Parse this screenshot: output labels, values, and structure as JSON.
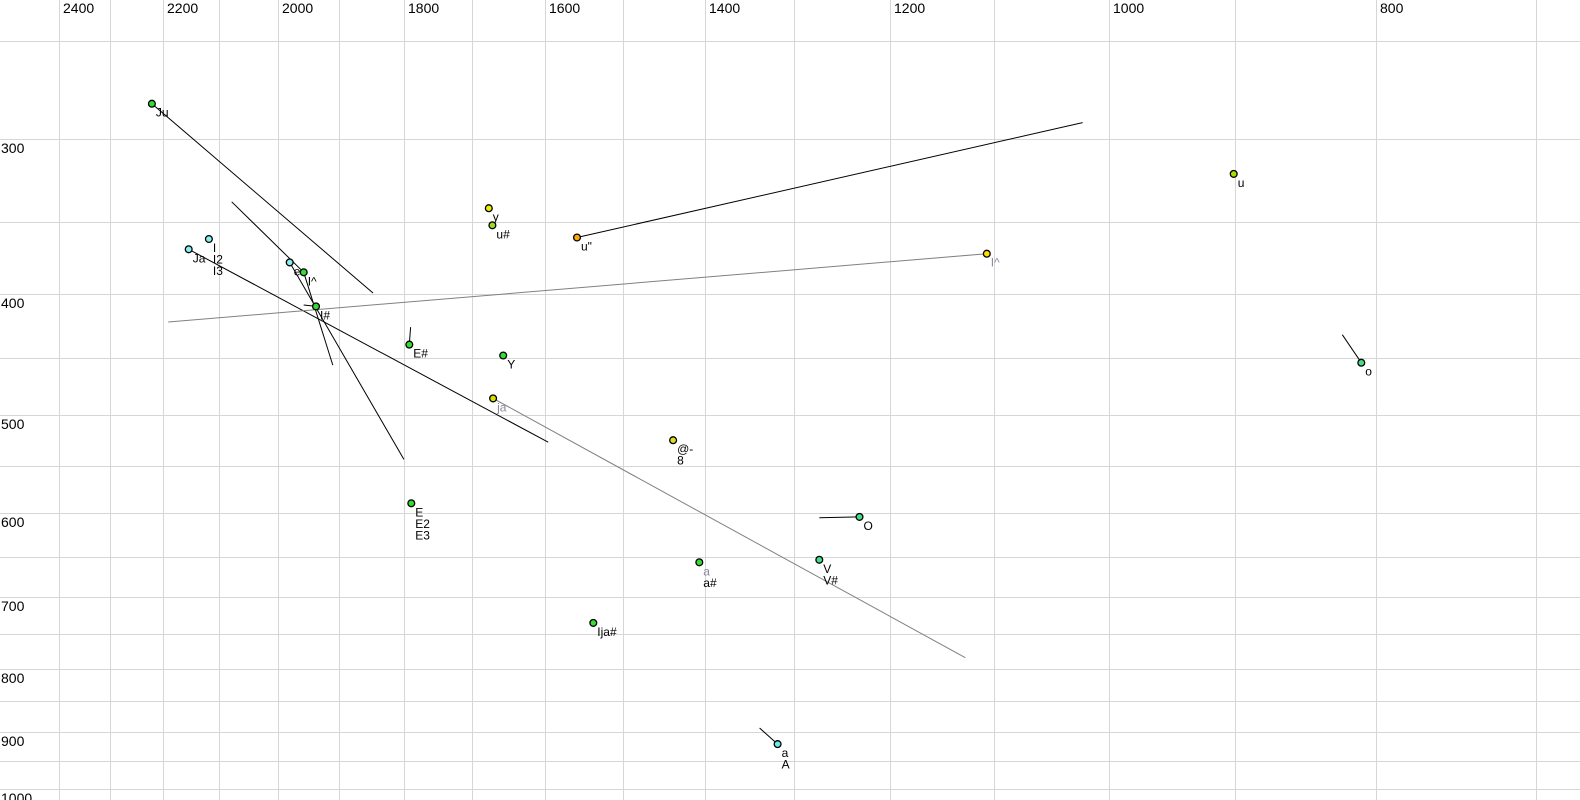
{
  "chart_data": {
    "type": "scatter",
    "title": "",
    "xlabel": "",
    "ylabel": "",
    "description": "Vowel formant plot (F2 horizontal reversed log scale, F1 vertical log scale), Praat-style picture with labelled vowel tokens and trajectory lines",
    "x_axis": {
      "unit": "Hz",
      "scale": "log",
      "reversed": true,
      "grid_min": 700,
      "grid_max": 2400,
      "gridline_step": 100,
      "labeled_ticks": [
        2400,
        2200,
        2000,
        1800,
        1600,
        1400,
        1200,
        1000,
        800
      ]
    },
    "y_axis": {
      "unit": "Hz",
      "scale": "log",
      "downward": true,
      "grid_min": 250,
      "grid_max": 1000,
      "gridline_step": 50,
      "labeled_ticks": [
        300,
        400,
        500,
        600,
        700,
        800,
        900,
        1000
      ]
    },
    "grid": true,
    "legend": false,
    "points": [
      {
        "id": "Ju",
        "f2": 2221,
        "f1": 281,
        "color": "#33dd33",
        "labels": [
          {
            "text": "Ju",
            "color": "#000000"
          }
        ]
      },
      {
        "id": "I",
        "f2": 2118,
        "f1": 361,
        "color": "#88eeee",
        "labels": [
          {
            "text": "I",
            "color": "#000000"
          },
          {
            "text": "I2",
            "color": "#000000"
          },
          {
            "text": "I3",
            "color": "#000000"
          }
        ]
      },
      {
        "id": "Ja",
        "f2": 2154,
        "f1": 368,
        "color": "#88eeee",
        "labels": [
          {
            "text": "Ja",
            "color": "#000000"
          }
        ]
      },
      {
        "id": "e",
        "f2": 1980,
        "f1": 377,
        "color": "#88eeee",
        "labels": [
          {
            "text": "e",
            "color": "#000000"
          }
        ]
      },
      {
        "id": "I^",
        "f2": 1957,
        "f1": 384,
        "color": "#33dd33",
        "labels": [
          {
            "text": "I^",
            "color": "#000000"
          }
        ]
      },
      {
        "id": "I#",
        "f2": 1937,
        "f1": 409,
        "color": "#33dd33",
        "labels": [
          {
            "text": "I#",
            "color": "#000000"
          }
        ]
      },
      {
        "id": "y",
        "f2": 1677,
        "f1": 341,
        "color": "#eeee00",
        "labels": [
          {
            "text": "y",
            "color": "#000000"
          }
        ]
      },
      {
        "id": "u#",
        "f2": 1672,
        "f1": 352,
        "color": "#99dd22",
        "labels": [
          {
            "text": "u#",
            "color": "#000000"
          }
        ]
      },
      {
        "id": "u\"",
        "f2": 1558,
        "f1": 360,
        "color": "#ffaa00",
        "labels": [
          {
            "text": "u\"",
            "color": "#000000"
          }
        ]
      },
      {
        "id": "E#",
        "f2": 1792,
        "f1": 439,
        "color": "#33dd33",
        "labels": [
          {
            "text": "E#",
            "color": "#000000"
          }
        ]
      },
      {
        "id": "Y",
        "f2": 1657,
        "f1": 448,
        "color": "#33dd33",
        "labels": [
          {
            "text": "Y",
            "color": "#000000"
          }
        ]
      },
      {
        "id": "ja",
        "f2": 1671,
        "f1": 485,
        "color": "#dddd00",
        "labels": [
          {
            "text": "ja",
            "color": "#8a8a9e"
          }
        ]
      },
      {
        "id": "@-",
        "f2": 1438,
        "f1": 524,
        "color": "#dddd22",
        "labels": [
          {
            "text": "@-",
            "color": "#000000"
          },
          {
            "text": "8",
            "color": "#000000"
          }
        ]
      },
      {
        "id": "E",
        "f2": 1789,
        "f1": 589,
        "color": "#33dd33",
        "labels": [
          {
            "text": "E",
            "color": "#000000"
          },
          {
            "text": "E2",
            "color": "#000000"
          },
          {
            "text": "E3",
            "color": "#000000"
          }
        ]
      },
      {
        "id": "O",
        "f2": 1231,
        "f1": 604,
        "color": "#44dd88",
        "labels": [
          {
            "text": "O",
            "color": "#000000"
          }
        ]
      },
      {
        "id": "a",
        "f2": 1407,
        "f1": 657,
        "color": "#33dd33",
        "labels": [
          {
            "text": "a",
            "color": "#8a8a9e"
          },
          {
            "text": "a#",
            "color": "#000000"
          }
        ]
      },
      {
        "id": "V",
        "f2": 1273,
        "f1": 654,
        "color": "#44dd88",
        "labels": [
          {
            "text": "V",
            "color": "#000000"
          },
          {
            "text": "V#",
            "color": "#000000"
          }
        ]
      },
      {
        "id": "Ija#",
        "f2": 1537,
        "f1": 735,
        "color": "#33dd33",
        "labels": [
          {
            "text": "Ija#",
            "color": "#000000"
          }
        ]
      },
      {
        "id": "aA",
        "f2": 1318,
        "f1": 920,
        "color": "#66eeee",
        "labels": [
          {
            "text": "a",
            "color": "#000000"
          },
          {
            "text": "A",
            "color": "#000000"
          }
        ]
      },
      {
        "id": "I^2",
        "f2": 1107,
        "f1": 371,
        "color": "#ffdd00",
        "labels": [
          {
            "text": "I^",
            "color": "#8a8a9e"
          }
        ]
      },
      {
        "id": "u",
        "f2": 901,
        "f1": 320,
        "color": "#aae000",
        "labels": [
          {
            "text": "u",
            "color": "#000000"
          }
        ]
      },
      {
        "id": "o",
        "f2": 810,
        "f1": 454,
        "color": "#44dd88",
        "labels": [
          {
            "text": "o",
            "color": "#000000"
          }
        ]
      }
    ],
    "segments": [
      {
        "from": [
          2221,
          281
        ],
        "to": [
          1847,
          399
        ],
        "color": "#000000"
      },
      {
        "from": [
          2154,
          368
        ],
        "to": [
          1596,
          526
        ],
        "color": "#000000"
      },
      {
        "from": [
          1980,
          377
        ],
        "to": [
          1800,
          543
        ],
        "color": "#000000"
      },
      {
        "from": [
          2078,
          337
        ],
        "to": [
          1957,
          384
        ],
        "color": "#000000"
      },
      {
        "from": [
          1957,
          384
        ],
        "to": [
          1910,
          456
        ],
        "color": "#000000"
      },
      {
        "from": [
          1957,
          408
        ],
        "to": [
          1937,
          409
        ],
        "color": "#000000"
      },
      {
        "from": [
          1558,
          360
        ],
        "to": [
          1022,
          291
        ],
        "color": "#000000"
      },
      {
        "from": [
          1790,
          425
        ],
        "to": [
          1792,
          439
        ],
        "color": "#000000"
      },
      {
        "from": [
          1671,
          485
        ],
        "to": [
          1127,
          784
        ],
        "color": "#808080"
      },
      {
        "from": [
          2191,
          421
        ],
        "to": [
          1107,
          371
        ],
        "color": "#808080"
      },
      {
        "from": [
          1273,
          605
        ],
        "to": [
          1231,
          604
        ],
        "color": "#000000"
      },
      {
        "from": [
          1338,
          893
        ],
        "to": [
          1318,
          920
        ],
        "color": "#000000"
      },
      {
        "from": [
          823,
          431
        ],
        "to": [
          810,
          454
        ],
        "color": "#000000"
      }
    ],
    "style": {
      "background": "#ffffff",
      "gridline_color": "#d6d6d6",
      "tick_label_color": "#000000",
      "point_outline_color": "#000000"
    }
  }
}
